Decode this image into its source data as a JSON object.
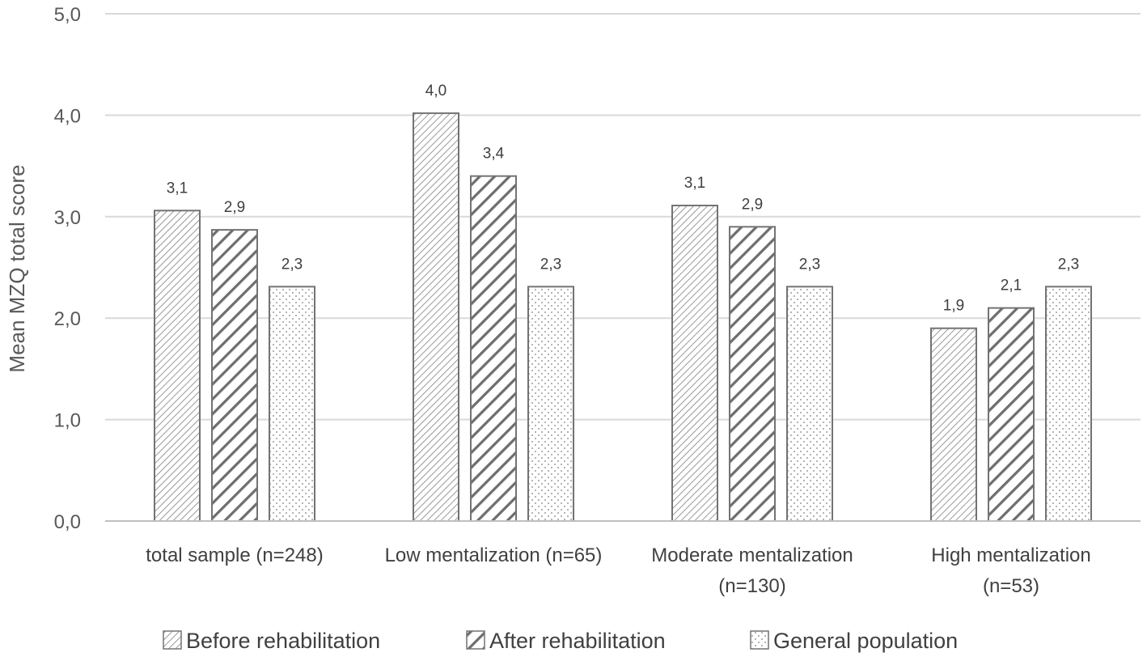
{
  "chart_data": {
    "type": "bar",
    "title": "",
    "xlabel": "",
    "ylabel": "Mean MZQ total score",
    "ylim": [
      0,
      5
    ],
    "yticks": [
      "0,0",
      "1,0",
      "2,0",
      "3,0",
      "4,0",
      "5,0"
    ],
    "grid": true,
    "legend_position": "bottom",
    "categories": [
      [
        "total sample (n=248)"
      ],
      [
        "Low mentalization (n=65)"
      ],
      [
        "Moderate mentalization",
        "(n=130)"
      ],
      [
        "High mentalization",
        "(n=53)"
      ]
    ],
    "series": [
      {
        "name": "Before rehabilitation",
        "pattern": "diag-thin",
        "values": [
          3.06,
          4.02,
          3.11,
          1.9
        ],
        "labels": [
          "3,1",
          "4,0",
          "3,1",
          "1,9"
        ]
      },
      {
        "name": "After rehabilitation",
        "pattern": "diag-thick",
        "values": [
          2.87,
          3.4,
          2.9,
          2.1
        ],
        "labels": [
          "2,9",
          "3,4",
          "2,9",
          "2,1"
        ]
      },
      {
        "name": "General population",
        "pattern": "dots",
        "values": [
          2.31,
          2.31,
          2.31,
          2.31
        ],
        "labels": [
          "2,3",
          "2,3",
          "2,3",
          "2,3"
        ]
      }
    ]
  },
  "colors": {
    "bar_stroke": "#737373",
    "grid": "#d9d9d9",
    "axis": "#bfbfbf",
    "pattern": "#7f7f7f"
  }
}
